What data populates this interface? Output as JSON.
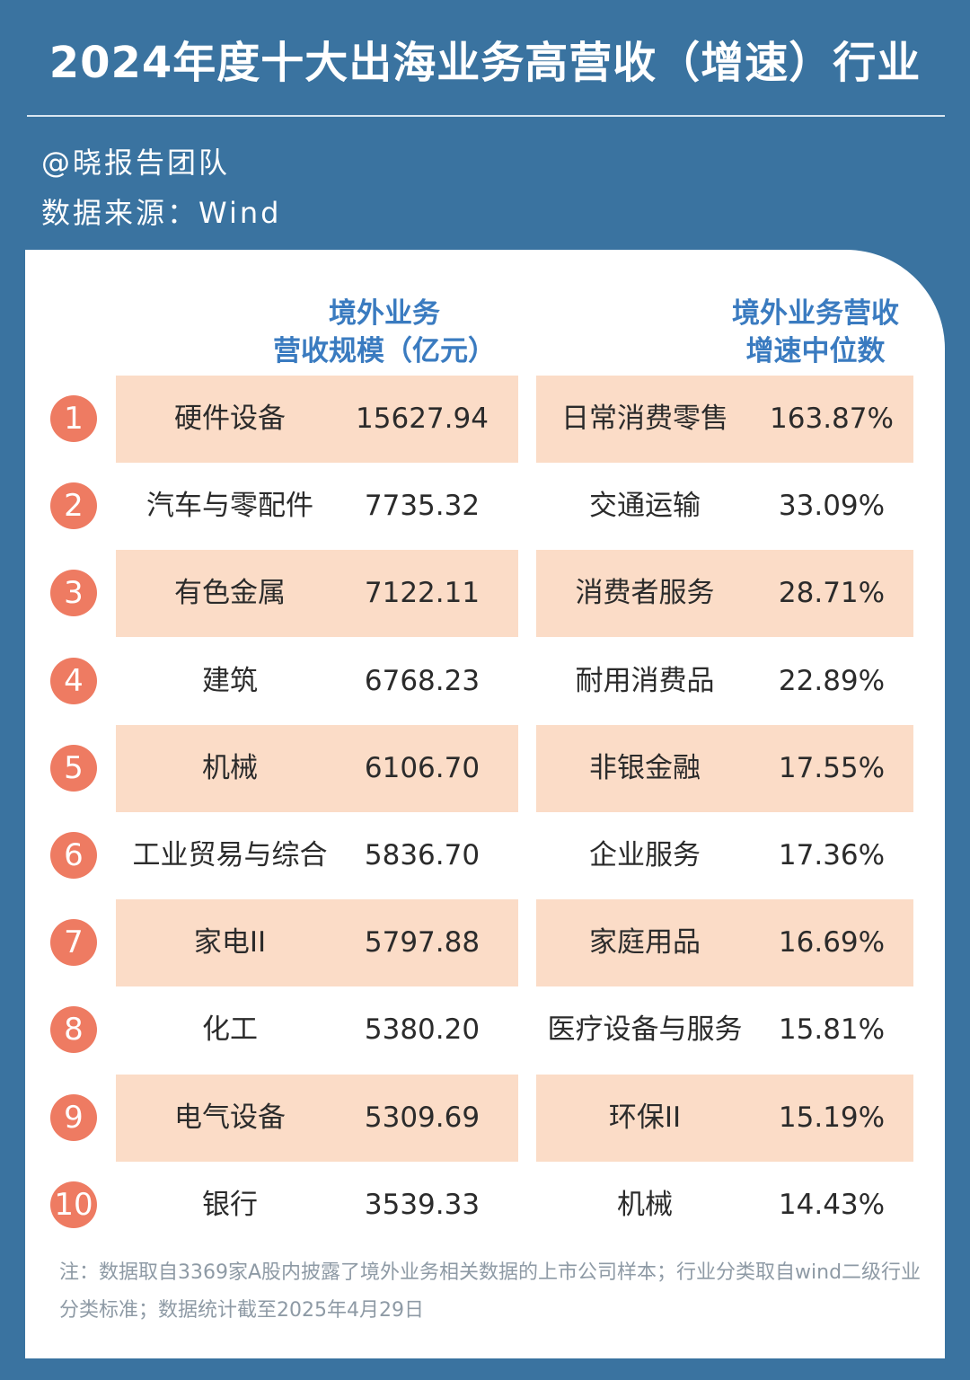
{
  "title": "2024年度十大出海业务高营收（增速）行业",
  "author": "@晓报告团队",
  "source": "数据来源：Wind",
  "headers": {
    "left": "境外业务\n营收规模（亿元）",
    "right": "境外业务营收\n增速中位数"
  },
  "rows": [
    {
      "rank": "1",
      "industry1": "硬件设备",
      "revenue": "15627.94",
      "industry2": "日常消费零售",
      "growth": "163.87%"
    },
    {
      "rank": "2",
      "industry1": "汽车与零配件",
      "revenue": "7735.32",
      "industry2": "交通运输",
      "growth": "33.09%"
    },
    {
      "rank": "3",
      "industry1": "有色金属",
      "revenue": "7122.11",
      "industry2": "消费者服务",
      "growth": "28.71%"
    },
    {
      "rank": "4",
      "industry1": "建筑",
      "revenue": "6768.23",
      "industry2": "耐用消费品",
      "growth": "22.89%"
    },
    {
      "rank": "5",
      "industry1": "机械",
      "revenue": "6106.70",
      "industry2": "非银金融",
      "growth": "17.55%"
    },
    {
      "rank": "6",
      "industry1": "工业贸易与综合",
      "revenue": "5836.70",
      "industry2": "企业服务",
      "growth": "17.36%"
    },
    {
      "rank": "7",
      "industry1": "家电II",
      "revenue": "5797.88",
      "industry2": "家庭用品",
      "growth": "16.69%"
    },
    {
      "rank": "8",
      "industry1": "化工",
      "revenue": "5380.20",
      "industry2": "医疗设备与服务",
      "growth": "15.81%"
    },
    {
      "rank": "9",
      "industry1": "电气设备",
      "revenue": "5309.69",
      "industry2": "环保II",
      "growth": "15.19%"
    },
    {
      "rank": "10",
      "industry1": "银行",
      "revenue": "3539.33",
      "industry2": "机械",
      "growth": "14.43%"
    }
  ],
  "note": "注：数据取自3369家A股内披露了境外业务相关数据的上市公司样本；行业分类取自wind二级行业分类标准；数据统计截至2025年4月29日",
  "colors": {
    "background": "#3a73a0",
    "header_text": "#3a7bc0",
    "row_highlight": "#fbdcc7",
    "rank_badge": "#ee7b62",
    "note_text": "#8e9aa5"
  }
}
